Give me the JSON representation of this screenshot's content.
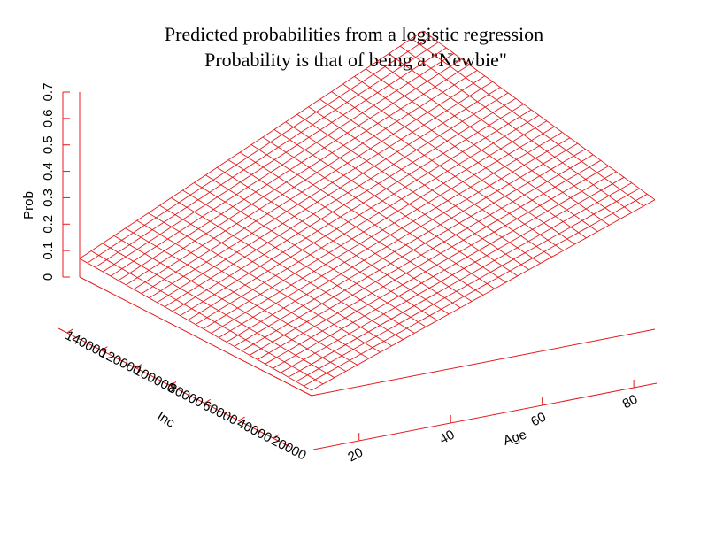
{
  "chart_data": {
    "type": "surface",
    "title": "Predicted probabilities from a logistic regression",
    "subtitle": "Probability is that of being a \"Newbie\"",
    "xlabel": "Age",
    "ylabel": "Inc",
    "zlabel": "Prob",
    "xlim": [
      10,
      85
    ],
    "ylim": [
      10000,
      145000
    ],
    "zlim": [
      0,
      0.7
    ],
    "x_ticks": [
      "20",
      "40",
      "60",
      "80"
    ],
    "y_ticks": [
      "20000",
      "40000",
      "60000",
      "80000",
      "100000",
      "120000",
      "140000"
    ],
    "z_ticks": [
      "0",
      "0.1",
      "0.2",
      "0.3",
      "0.4",
      "0.5",
      "0.6",
      "0.7"
    ],
    "grid_lines": 30,
    "color": "#e41a1c",
    "surface_corners": [
      {
        "x": 10,
        "y": 145000,
        "z": 0.07
      },
      {
        "x": 10,
        "y": 10000,
        "z": 0.02
      },
      {
        "x": 85,
        "y": 10000,
        "z": 0.49
      },
      {
        "x": 85,
        "y": 145000,
        "z": 0.68
      }
    ]
  }
}
